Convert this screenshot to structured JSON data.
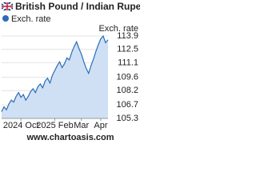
{
  "chart_data": {
    "type": "line",
    "title": "British Pound / Indian Rupee",
    "ylabel": "Exch. rate",
    "source": "www.chartoasis.com",
    "xlim": [
      0,
      44
    ],
    "xticks": [
      {
        "value": 8,
        "label": "2024 Oct"
      },
      {
        "value": 22,
        "label": "2025 Feb"
      },
      {
        "value": 33,
        "label": "Mar"
      },
      {
        "value": 41,
        "label": "Apr"
      }
    ],
    "ylim": [
      105.3,
      113.9
    ],
    "yticks": [
      113.9,
      112.5,
      111.1,
      109.6,
      108.2,
      106.7,
      105.3
    ],
    "grid": true,
    "x": [
      0,
      1,
      2,
      3,
      4,
      5,
      6,
      7,
      8,
      9,
      10,
      11,
      12,
      13,
      14,
      15,
      16,
      17,
      18,
      19,
      20,
      21,
      22,
      23,
      24,
      25,
      26,
      27,
      28,
      29,
      30,
      31,
      32,
      33,
      34,
      35,
      36,
      37,
      38,
      39,
      40,
      41,
      42,
      43,
      44
    ],
    "series": [
      {
        "name": "Exch. rate",
        "color": "#2a6db5",
        "fill": "#cfe0f5",
        "values": [
          106.0,
          106.5,
          106.2,
          106.8,
          107.2,
          107.0,
          107.6,
          108.0,
          107.5,
          107.8,
          107.2,
          107.6,
          108.1,
          108.4,
          108.0,
          108.6,
          108.9,
          108.5,
          109.2,
          109.5,
          109.0,
          109.8,
          110.3,
          110.8,
          111.2,
          110.6,
          111.0,
          111.6,
          111.4,
          112.2,
          112.8,
          113.3,
          112.6,
          112.0,
          111.2,
          110.5,
          110.0,
          110.8,
          111.5,
          112.3,
          113.0,
          113.6,
          113.9,
          113.2,
          113.5
        ]
      }
    ]
  }
}
